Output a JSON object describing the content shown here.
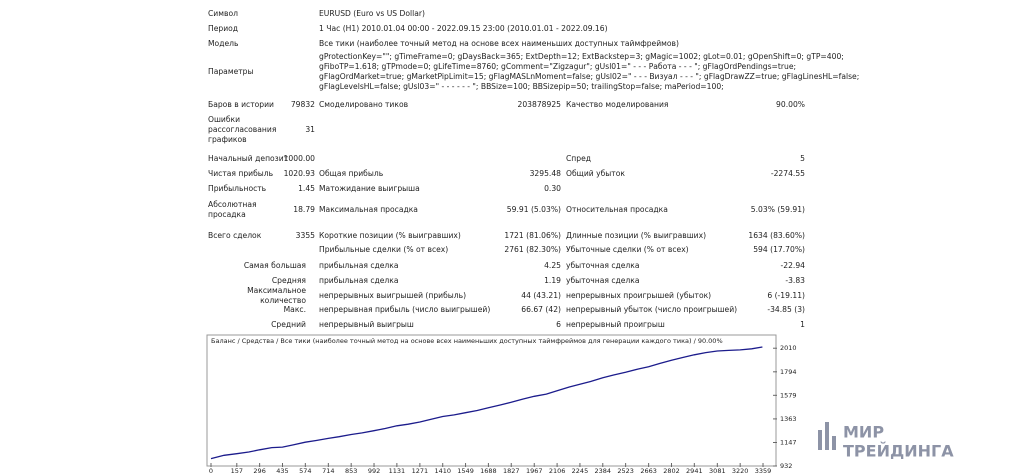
{
  "report": {
    "header_rows": [
      {
        "label": "Символ",
        "value": [
          "EURUSD (Euro vs US Dollar)"
        ]
      },
      {
        "label": "Период",
        "value": [
          "1 Час (H1) 2010.01.04 00:00 - 2022.09.15 23:00 (2010.01.01 - 2022.09.16)"
        ]
      },
      {
        "label": "Модель",
        "value": [
          "Все тики (наиболее точный метод на основе всех наименьших доступных таймфреймов)"
        ]
      },
      {
        "label": "Параметры",
        "value": [
          "gProtectionKey=\"\"; gTimeFrame=0; gDaysBack=365; ExtDepth=12; ExtBackstep=3; gMagic=1002; gLot=0.01; gOpenShift=0; gTP=400;",
          "gFiboTP=1.618; gTPmode=0; gLifeTime=8760; gComment=\"Zigzagur\"; gUsl01=\" - - - Работа - - - \"; gFlagOrdPendings=true;",
          "gFlagOrdMarket=true; gMarketPipLimit=15; gFlagMASLnMoment=false; gUsl02=\" - - - Визуал - - - \"; gFlagDrawZZ=true; gFlagLinesHL=false;",
          "gFlagLevelsHL=false; gUsl03=\" - - - - - - \"; BBSize=100; BBSizepip=50; trailingStop=false; maPeriod=100;"
        ]
      }
    ],
    "stats_rows": [
      {
        "l1": "Баров в истории",
        "v1": "79832",
        "l2": "Смоделировано тиков",
        "v2": "203878925",
        "l3": "Качество моделирования",
        "v3": "90.00%"
      },
      {
        "l1": "Ошибки рассогласования графиков",
        "v1": "31"
      },
      {
        "l1": "Начальный депозит",
        "v1": "1000.00",
        "l3": "Спред",
        "v3": "5"
      },
      {
        "l1": "Чистая прибыль",
        "v1": "1020.93",
        "l2": "Общая прибыль",
        "v2": "3295.48",
        "l3": "Общий убыток",
        "v3": "-2274.55"
      },
      {
        "l1": "Прибыльность",
        "v1": "1.45",
        "l2": "Матожидание выигрыша",
        "v2": "0.30"
      },
      {
        "l1": "Абсолютная просадка",
        "v1": "18.79",
        "l2": "Максимальная просадка",
        "v2": "59.91 (5.03%)",
        "l3": "Относительная просадка",
        "v3": "5.03% (59.91)"
      },
      {
        "l1": "Всего сделок",
        "v1": "3355",
        "l2": "Короткие позиции (% выигравших)",
        "v2": "1721 (81.06%)",
        "l3": "Длинные позиции (% выигравших)",
        "v3": "1634 (83.60%)"
      },
      {
        "l2": "Прибыльные сделки (% от всех)",
        "v2": "2761 (82.30%)",
        "l3": "Убыточные сделки (% от всех)",
        "v3": "594 (17.70%)"
      },
      {
        "l1": "Самая большая",
        "l2": "прибыльная сделка",
        "v2": "4.25",
        "l3": "убыточная сделка",
        "v3": "-22.94"
      },
      {
        "l1": "Средняя",
        "l2": "прибыльная сделка",
        "v2": "1.19",
        "l3": "убыточная сделка",
        "v3": "-3.83"
      },
      {
        "l1": "Максимальное количество",
        "l2": "непрерывных выигрышей (прибыль)",
        "v2": "44 (43.21)",
        "l3": "непрерывных проигрышей (убыток)",
        "v3": "6 (-19.11)"
      },
      {
        "l1": "Макс.",
        "l2": "непрерывная прибыль (число выигрышей)",
        "v2": "66.67 (42)",
        "l3": "непрерывный убыток (число проигрышей)",
        "v3": "-34.85 (3)"
      },
      {
        "l1": "Средний",
        "l2": "непрерывный выигрыш",
        "v2": "6",
        "l3": "непрерывный проигрыш",
        "v3": "1"
      }
    ]
  },
  "chart_data": {
    "type": "line",
    "legend": "Баланс / Средства / Все тики (наиболее точный метод на основе всех наименьших доступных таймфреймов для генерации каждого тика) / 90.00%",
    "x": [
      0,
      80,
      157,
      230,
      296,
      370,
      435,
      500,
      574,
      640,
      714,
      780,
      853,
      920,
      992,
      1060,
      1131,
      1200,
      1271,
      1340,
      1410,
      1480,
      1549,
      1620,
      1688,
      1760,
      1827,
      1900,
      1967,
      2040,
      2106,
      2180,
      2245,
      2310,
      2384,
      2450,
      2523,
      2600,
      2663,
      2730,
      2802,
      2870,
      2941,
      3010,
      3081,
      3150,
      3220,
      3290,
      3355
    ],
    "series": [
      {
        "color": "#1c1c8c",
        "values": [
          1000,
          1030,
          1045,
          1060,
          1080,
          1100,
          1105,
          1125,
          1150,
          1165,
          1185,
          1200,
          1220,
          1235,
          1255,
          1275,
          1300,
          1315,
          1335,
          1360,
          1385,
          1400,
          1420,
          1440,
          1465,
          1490,
          1515,
          1545,
          1570,
          1590,
          1620,
          1655,
          1680,
          1705,
          1740,
          1765,
          1790,
          1820,
          1840,
          1870,
          1900,
          1925,
          1950,
          1970,
          1985,
          1990,
          1995,
          2005,
          2021
        ]
      }
    ],
    "xlim": [
      0,
      3438
    ],
    "ylim": [
      932,
      2131
    ],
    "xticks": [
      0,
      157,
      296,
      435,
      574,
      714,
      853,
      992,
      1131,
      1271,
      1410,
      1549,
      1688,
      1827,
      1967,
      2106,
      2245,
      2384,
      2523,
      2663,
      2802,
      2941,
      3081,
      3220,
      3359
    ],
    "yticks": [
      932,
      1147,
      1363,
      1579,
      1794,
      2010
    ]
  },
  "watermark": [
    "МИР",
    "ТРЕЙДИНГА"
  ]
}
